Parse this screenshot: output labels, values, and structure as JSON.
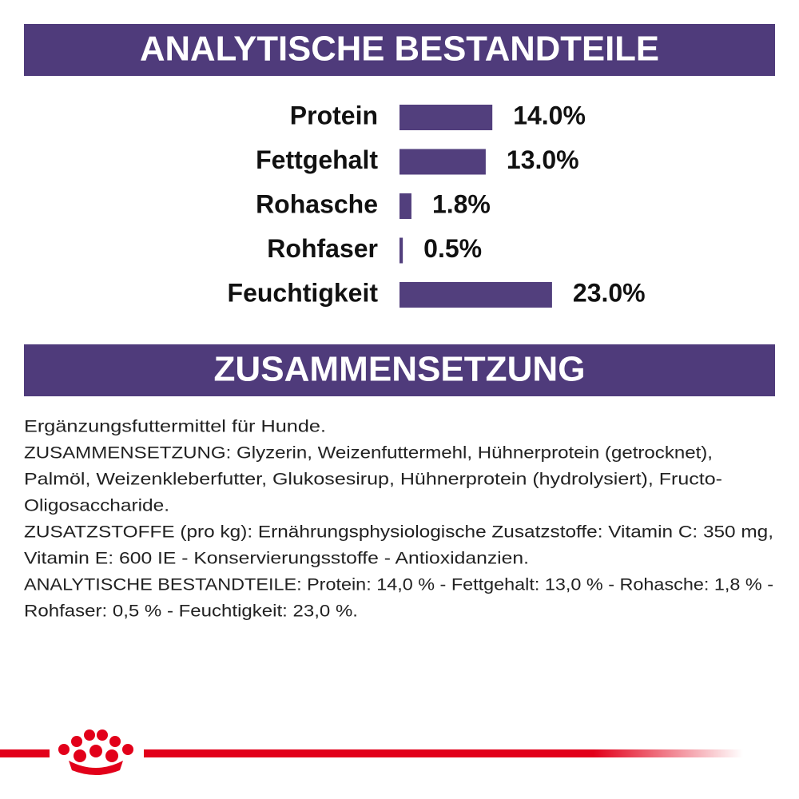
{
  "chart_data": {
    "type": "bar",
    "title": "ANALYTISCHE BESTANDTEILE",
    "categories": [
      "Protein",
      "Fettgehalt",
      "Rohasche",
      "Rohfaser",
      "Feuchtigkeit"
    ],
    "values": [
      14.0,
      13.0,
      1.8,
      0.5,
      23.0
    ],
    "value_labels": [
      "14.0%",
      "13.0%",
      "1.8%",
      "0.5%",
      "23.0%"
    ],
    "color": "#523f7d"
  },
  "composition": {
    "title": "ZUSAMMENSETZUNG",
    "lines": [
      "Ergänzungsfuttermittel für Hunde.",
      "ZUSAMMENSETZUNG: Glyzerin, Weizenfuttermehl, Hühnerprotein (getrocknet),",
      "Palmöl, Weizenkleberfutter, Glukosesirup, Hühnerprotein (hydrolysiert), Fructo-",
      "Oligosaccharide.",
      "ZUSATZSTOFFE (pro kg): Ernährungsphysiologische Zusatzstoffe: Vitamin C: 350 mg,",
      "Vitamin E: 600 IE - Konservierungsstoffe - Antioxidanzien.",
      "ANALYTISCHE BESTANDTEILE: Protein: 14,0 % - Fettgehalt: 13,0 % - Rohasche: 1,8 % -",
      "Rohfaser: 0,5 % - Feuchtigkeit: 23,0 %."
    ]
  }
}
